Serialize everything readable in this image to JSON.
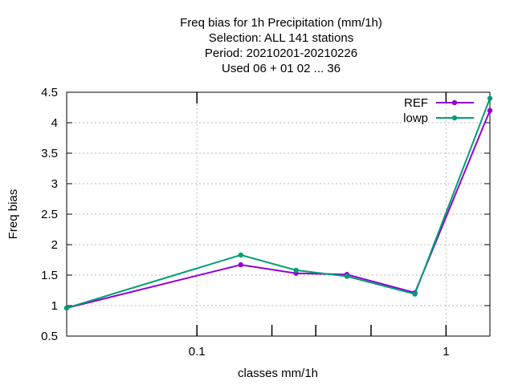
{
  "chart_data": {
    "type": "line",
    "title_lines": [
      "Freq bias  for 1h Precipitation (mm/1h)",
      "Selection: ALL    141 stations",
      "Period: 20210201-20210226",
      "Used  06  + 01 02 ... 36"
    ],
    "xlabel": "classes mm/1h",
    "ylabel": "Freq bias",
    "x_scale": "log",
    "xlim": [
      0.03,
      1.5
    ],
    "ylim": [
      0.5,
      4.5
    ],
    "x_ticks": [
      {
        "value": 0.1,
        "label": "0.1"
      },
      {
        "value": 1,
        "label": "1"
      }
    ],
    "x_minor_ticks": [
      0.2,
      0.3,
      0.5
    ],
    "y_ticks": [
      {
        "value": 0.5,
        "label": "0.5"
      },
      {
        "value": 1,
        "label": "1"
      },
      {
        "value": 1.5,
        "label": "1.5"
      },
      {
        "value": 2,
        "label": "2"
      },
      {
        "value": 2.5,
        "label": "2.5"
      },
      {
        "value": 3,
        "label": "3"
      },
      {
        "value": 3.5,
        "label": "3.5"
      },
      {
        "value": 4,
        "label": "4"
      },
      {
        "value": 4.5,
        "label": "4.5"
      }
    ],
    "grid": true,
    "legend_position": "top-right",
    "series": [
      {
        "name": "REF",
        "color": "#9400d3",
        "x": [
          0.03,
          0.15,
          0.25,
          0.4,
          0.75,
          1.5
        ],
        "y": [
          0.96,
          1.67,
          1.53,
          1.51,
          1.21,
          4.2
        ]
      },
      {
        "name": "lowp",
        "color": "#009e73",
        "x": [
          0.03,
          0.15,
          0.25,
          0.4,
          0.75,
          1.5
        ],
        "y": [
          0.96,
          1.83,
          1.58,
          1.48,
          1.19,
          4.4
        ]
      }
    ]
  }
}
